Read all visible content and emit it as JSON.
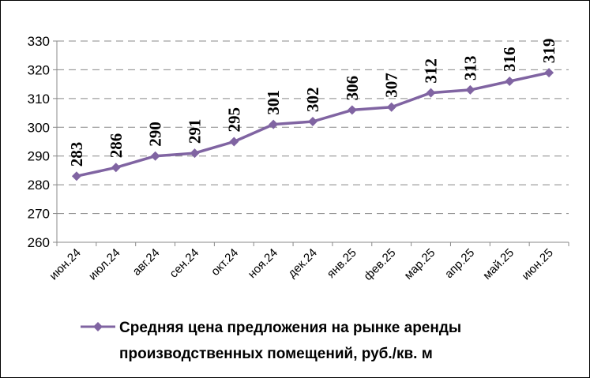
{
  "chart_data": {
    "type": "line",
    "categories": [
      "июн.24",
      "июл.24",
      "авг.24",
      "сен.24",
      "окт.24",
      "ноя.24",
      "дек.24",
      "янв.25",
      "фев.25",
      "мар.25",
      "апр.25",
      "май.25",
      "июн.25"
    ],
    "series": [
      {
        "name": "Средняя цена предложения на рынке аренды производственных помещений,  руб./кв. м",
        "name_lines": [
          "Средняя цена предложения на рынке аренды",
          "производственных помещений,  руб./кв. м"
        ],
        "values": [
          283,
          286,
          290,
          291,
          295,
          301,
          302,
          306,
          307,
          312,
          313,
          316,
          319
        ],
        "labels": [
          "283",
          "286",
          "290",
          "291",
          "295",
          "301",
          "302",
          "306",
          "307",
          "312",
          "313",
          "316",
          "319"
        ],
        "color": "#8064a2"
      }
    ],
    "ylim": [
      260,
      330
    ],
    "yticks": [
      "260",
      "270",
      "280",
      "290",
      "300",
      "310",
      "320",
      "330"
    ],
    "ytick_values": [
      260,
      270,
      280,
      290,
      300,
      310,
      320,
      330
    ],
    "grid": "horizontal-dashed",
    "legend_position": "bottom",
    "title": "",
    "xlabel": "",
    "ylabel": ""
  }
}
